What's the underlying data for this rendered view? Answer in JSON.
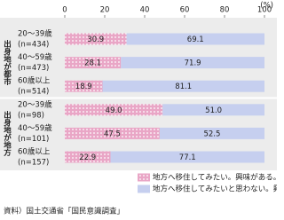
{
  "chart_data": {
    "type": "stacked_bar_horizontal",
    "unit": "(%)",
    "groups": [
      "出身地が都市",
      "出身地が地方"
    ],
    "categories": [
      "20～39歳",
      "40～59歳",
      "60歳以上",
      "20～39歳",
      "40～59歳",
      "60歳以上"
    ],
    "sample_sizes": [
      "(n=434)",
      "(n=473)",
      "(n=514)",
      "(n=98)",
      "(n=101)",
      "(n=157)"
    ],
    "series": [
      {
        "name": "地方へ移住してみたい。興味がある。",
        "color": "#e9a6c6",
        "values": [
          30.9,
          28.1,
          18.9,
          49.0,
          47.5,
          22.9
        ],
        "value_labels": [
          "30.9",
          "28.1",
          "18.9",
          "49.0",
          "47.5",
          "22.9"
        ]
      },
      {
        "name": "地方へ移住してみたいと思わない。興味がない。",
        "color": "#c6cfef",
        "values": [
          69.1,
          71.9,
          81.1,
          51.0,
          52.5,
          77.1
        ],
        "value_labels": [
          "69.1",
          "71.9",
          "81.1",
          "51.0",
          "52.5",
          "77.1"
        ]
      }
    ],
    "xlim": [
      0,
      100
    ],
    "xticks": [
      0,
      20,
      40,
      60,
      80,
      100
    ],
    "source": "資料）国土交通省「国民意識調査」"
  }
}
